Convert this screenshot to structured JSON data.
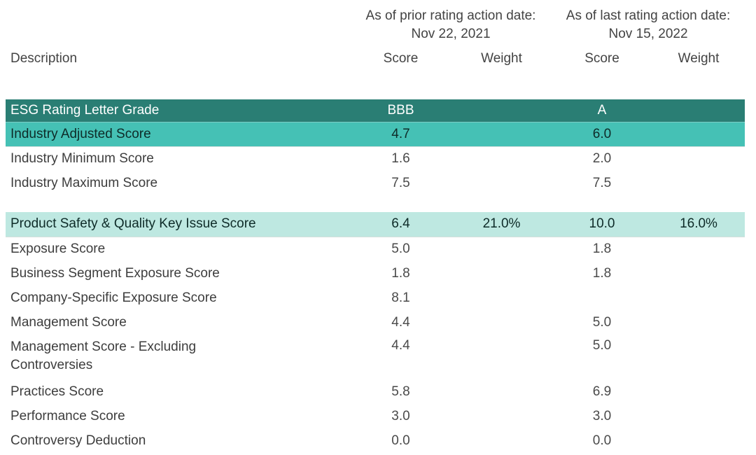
{
  "title": "ESG Rating Scores Table",
  "colors": {
    "dark-bg": "#2a7e74",
    "dark-text": "#ffffff",
    "teal-bg": "#45c1b5",
    "light-bg": "#bee8e1",
    "accent-text": "#0e2b28",
    "header-text": "#434343",
    "label-text": "#3d3d3d",
    "value-text": "#4a4a4a"
  },
  "columns": {
    "description": "Description",
    "groups": [
      {
        "title_line1": "As of prior rating action date:",
        "title_line2": "Nov 22, 2021",
        "score": "Score",
        "weight": "Weight"
      },
      {
        "title_line1": "As of last rating action date:",
        "title_line2": "Nov 15, 2022",
        "score": "Score",
        "weight": "Weight"
      }
    ]
  },
  "rows": [
    {
      "label": "ESG Rating Letter Grade",
      "prior_score": "BBB",
      "prior_weight": "",
      "last_score": "A",
      "last_weight": "",
      "style": "dark",
      "gap_before": false
    },
    {
      "label": "Industry Adjusted Score",
      "prior_score": "4.7",
      "prior_weight": "",
      "last_score": "6.0",
      "last_weight": "",
      "style": "teal",
      "gap_before": false
    },
    {
      "label": "Industry Minimum Score",
      "prior_score": "1.6",
      "prior_weight": "",
      "last_score": "2.0",
      "last_weight": "",
      "style": "plain",
      "gap_before": false
    },
    {
      "label": "Industry Maximum Score",
      "prior_score": "7.5",
      "prior_weight": "",
      "last_score": "7.5",
      "last_weight": "",
      "style": "plain",
      "gap_before": false
    },
    {
      "label": "Product Safety & Quality Key Issue Score",
      "prior_score": "6.4",
      "prior_weight": "21.0%",
      "last_score": "10.0",
      "last_weight": "16.0%",
      "style": "light",
      "gap_before": true
    },
    {
      "label": "Exposure Score",
      "prior_score": "5.0",
      "prior_weight": "",
      "last_score": "1.8",
      "last_weight": "",
      "style": "plain",
      "gap_before": false
    },
    {
      "label": "Business Segment Exposure Score",
      "prior_score": "1.8",
      "prior_weight": "",
      "last_score": "1.8",
      "last_weight": "",
      "style": "plain",
      "gap_before": false
    },
    {
      "label": "Company-Specific Exposure Score",
      "prior_score": "8.1",
      "prior_weight": "",
      "last_score": "",
      "last_weight": "",
      "style": "plain",
      "gap_before": false
    },
    {
      "label": "Management Score",
      "prior_score": "4.4",
      "prior_weight": "",
      "last_score": "5.0",
      "last_weight": "",
      "style": "plain",
      "gap_before": false
    },
    {
      "label": "Management Score - Excluding\nControversies",
      "prior_score": "4.4",
      "prior_weight": "",
      "last_score": "5.0",
      "last_weight": "",
      "style": "plain",
      "gap_before": false
    },
    {
      "label": "Practices Score",
      "prior_score": "5.8",
      "prior_weight": "",
      "last_score": "6.9",
      "last_weight": "",
      "style": "plain",
      "gap_before": false
    },
    {
      "label": "Performance Score",
      "prior_score": "3.0",
      "prior_weight": "",
      "last_score": "3.0",
      "last_weight": "",
      "style": "plain",
      "gap_before": false
    },
    {
      "label": "Controversy Deduction",
      "prior_score": "0.0",
      "prior_weight": "",
      "last_score": "0.0",
      "last_weight": "",
      "style": "plain",
      "gap_before": false
    }
  ]
}
